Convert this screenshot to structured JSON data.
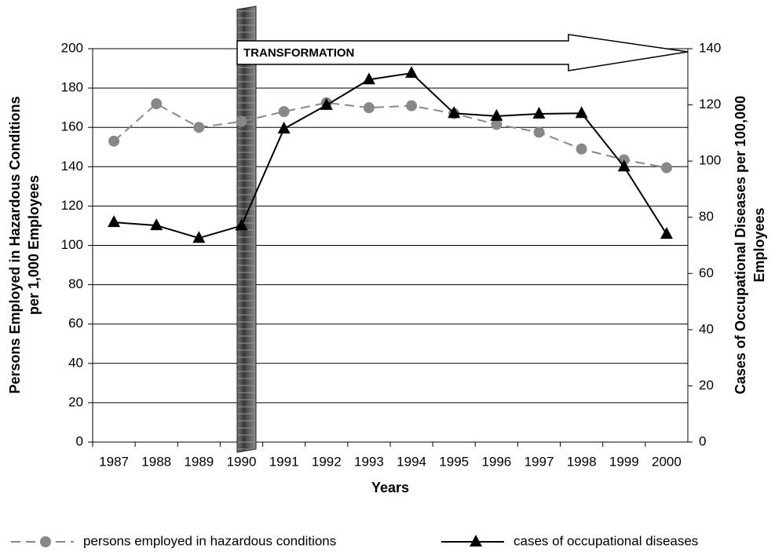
{
  "chart_data": {
    "type": "line",
    "categories": [
      "1987",
      "1988",
      "1989",
      "1990",
      "1991",
      "1992",
      "1993",
      "1994",
      "1995",
      "1996",
      "1997",
      "1998",
      "1999",
      "2000"
    ],
    "series": [
      {
        "name": "persons employed in hazardous conditions",
        "color": "#888888",
        "axis": "y",
        "values": [
          153,
          172,
          160,
          163,
          168,
          172.5,
          170,
          171,
          167,
          161.5,
          157.5,
          149,
          143.5,
          139.5
        ]
      },
      {
        "name": "cases of occupational diseases",
        "color": "#000000",
        "axis": "y2",
        "values": [
          78.2,
          77.1,
          72.6,
          77,
          111.5,
          119.9,
          129,
          131.3,
          117,
          116,
          116.8,
          117,
          98,
          74
        ]
      }
    ],
    "xlabel": "Years",
    "ylabel": [
      "Persons Employed in Hazardous Conditions",
      "per 1,000 Employees"
    ],
    "y2label": [
      "Cases of Occupational Diseases per 100,000",
      "Employees"
    ],
    "annotation": "TRANSFORMATION",
    "ylim": [
      0,
      200
    ],
    "yticks": [
      0,
      20,
      40,
      60,
      80,
      100,
      120,
      140,
      160,
      180,
      200
    ],
    "y2lim": [
      0,
      140
    ],
    "y2ticks": [
      0,
      20,
      40,
      60,
      80,
      100,
      120,
      140
    ],
    "grid": true,
    "legend": "bottom"
  }
}
